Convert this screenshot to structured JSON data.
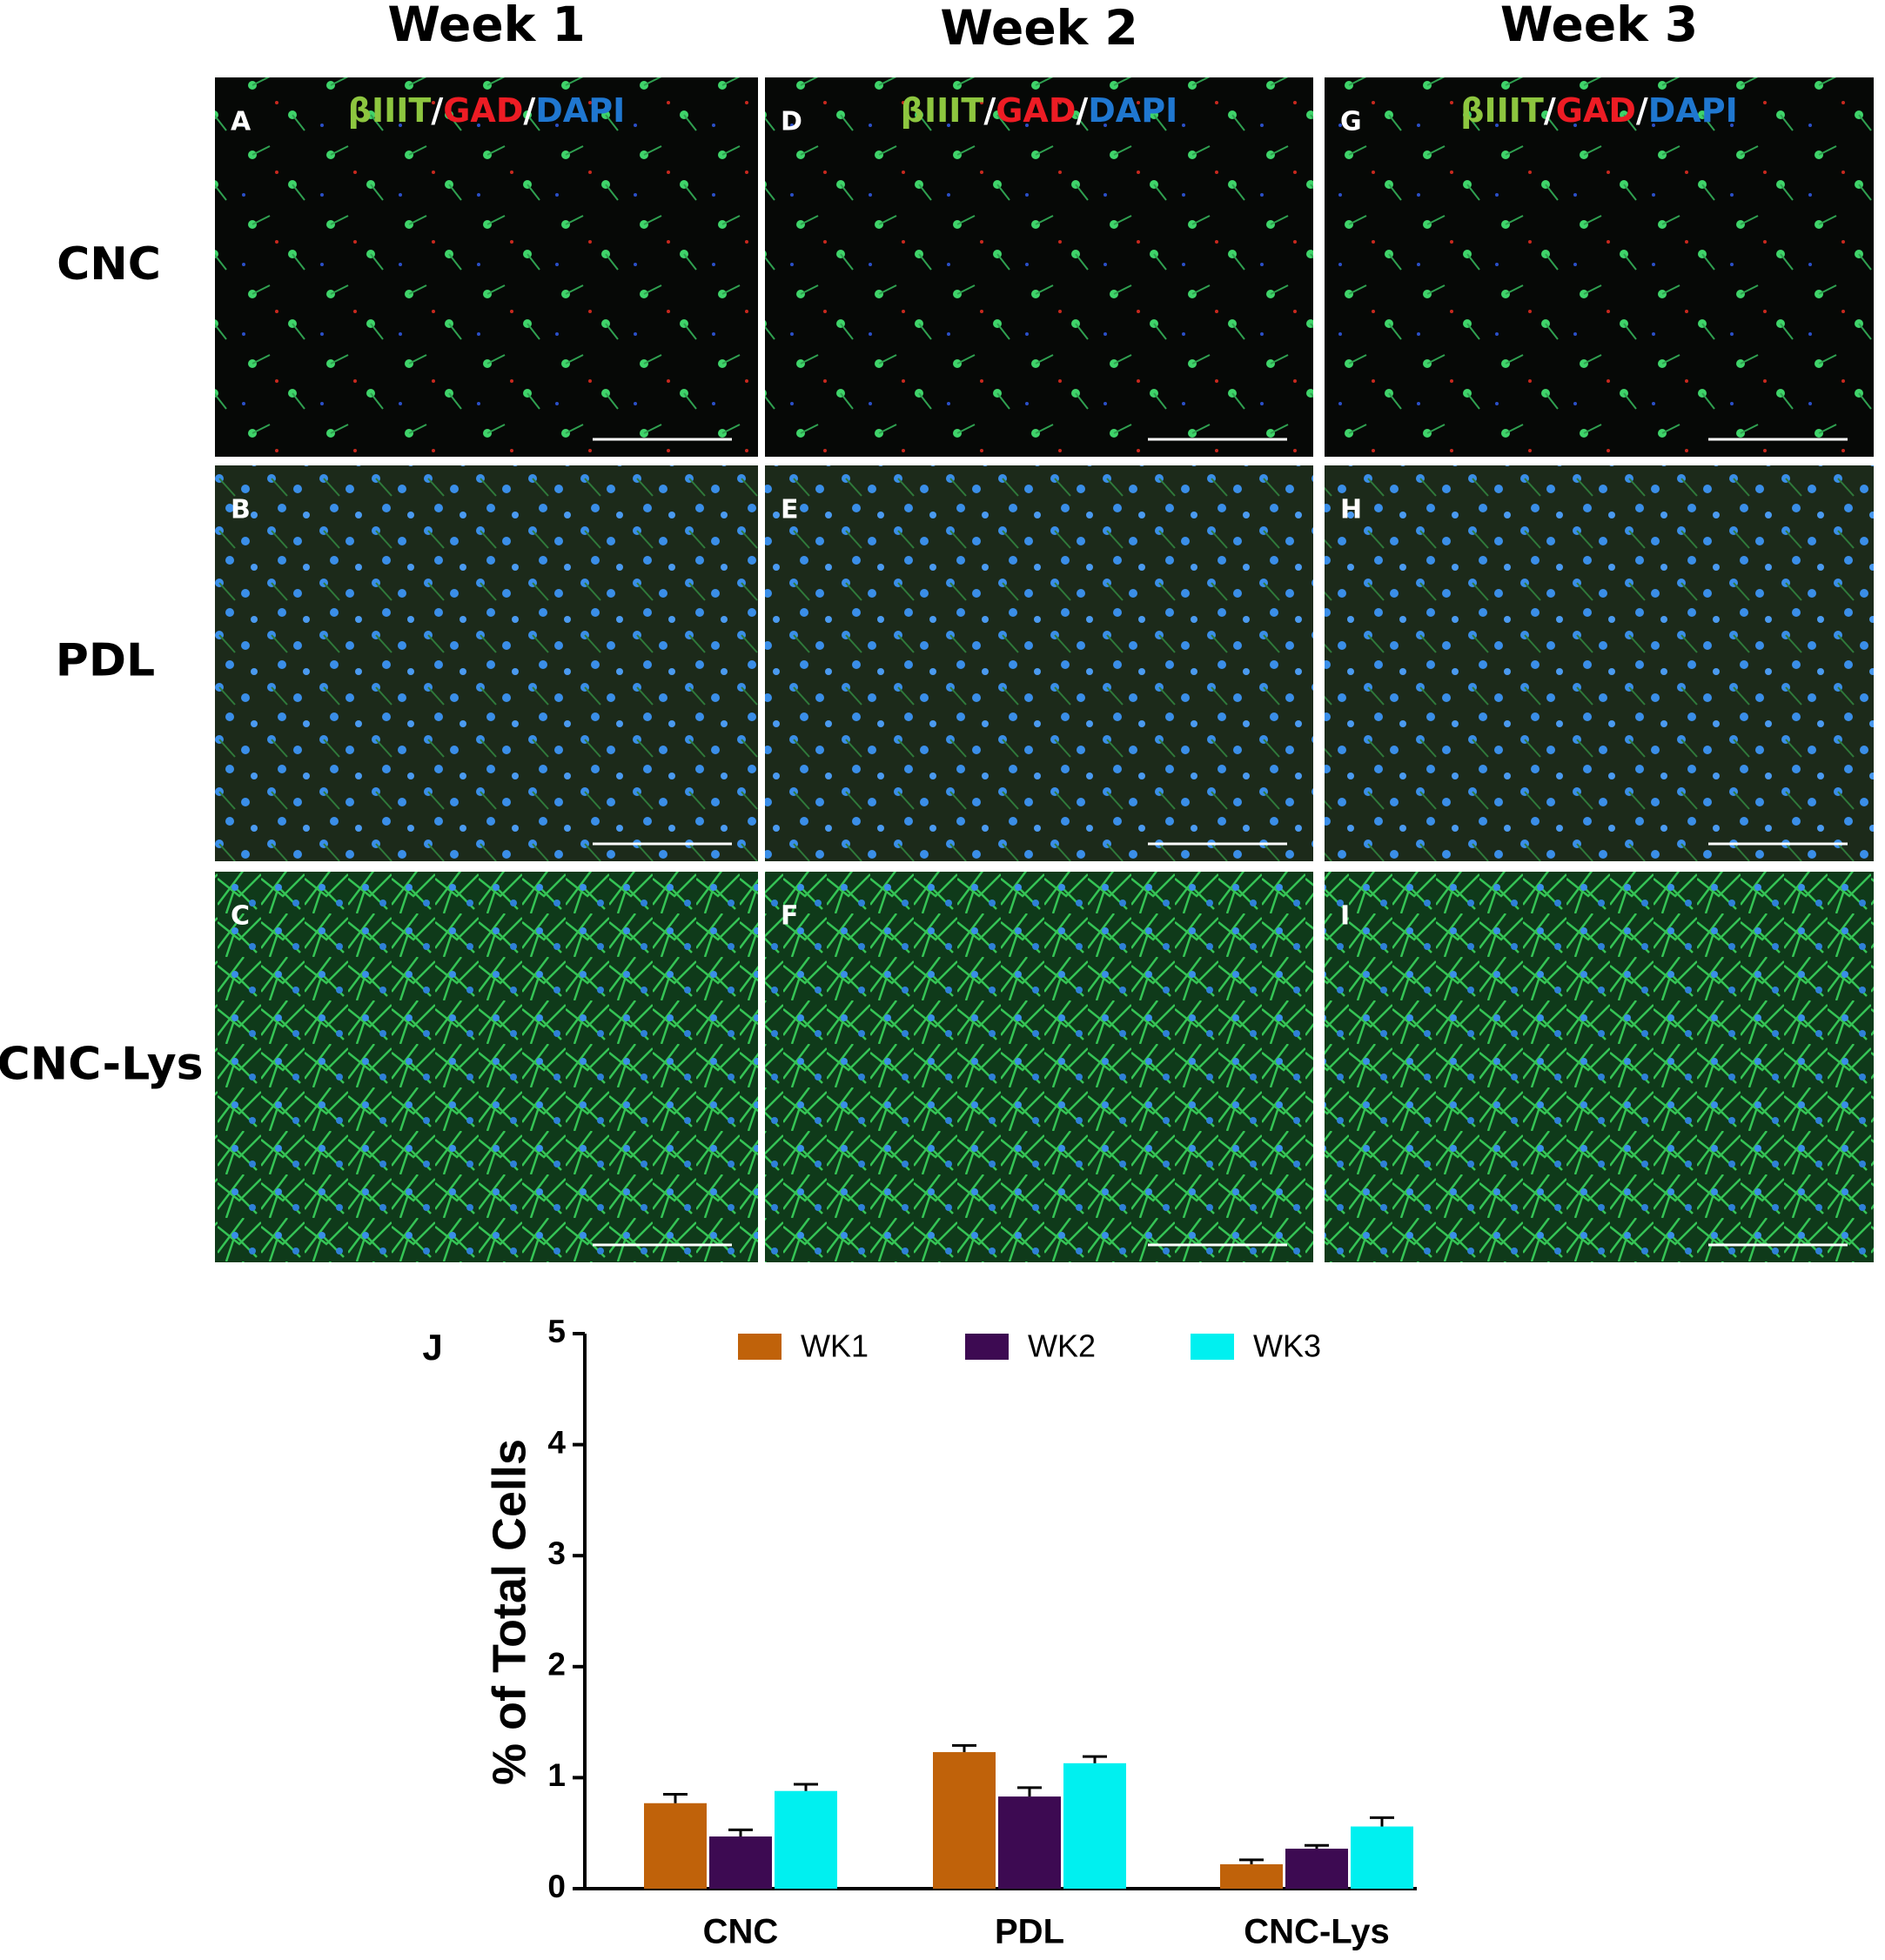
{
  "figure": {
    "columns": [
      "Week 1",
      "Week 2",
      "Week 3"
    ],
    "rows": [
      "CNC",
      "PDL",
      "CNC-Lys"
    ],
    "panels": [
      [
        "A",
        "D",
        "G"
      ],
      [
        "B",
        "E",
        "H"
      ],
      [
        "C",
        "F",
        "I"
      ]
    ],
    "stain": [
      "βIIIT",
      "/",
      "GAD",
      "/",
      "DAPI"
    ]
  },
  "chart_data": {
    "type": "bar",
    "panel_label": "J",
    "y_label": "% of Total Cells",
    "categories": [
      "CNC",
      "PDL",
      "CNC-Lys"
    ],
    "series": [
      {
        "name": "WK1",
        "color": "#c0620a",
        "values": [
          0.77,
          1.23,
          0.22
        ],
        "errors": [
          0.08,
          0.06,
          0.04
        ]
      },
      {
        "name": "WK2",
        "color": "#3d0a52",
        "values": [
          0.47,
          0.83,
          0.36
        ],
        "errors": [
          0.06,
          0.08,
          0.03
        ]
      },
      {
        "name": "WK3",
        "color": "#00f0f0",
        "values": [
          0.88,
          1.13,
          0.56
        ],
        "errors": [
          0.06,
          0.06,
          0.08
        ]
      }
    ],
    "ylim": [
      0,
      5
    ],
    "yticks": [
      0,
      1,
      2,
      3,
      4,
      5
    ],
    "grid": false,
    "legend": "top"
  }
}
